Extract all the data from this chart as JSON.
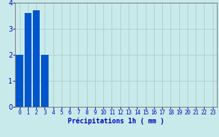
{
  "categories": [
    0,
    1,
    2,
    3,
    4,
    5,
    6,
    7,
    8,
    9,
    10,
    11,
    12,
    13,
    14,
    15,
    16,
    17,
    18,
    19,
    20,
    21,
    22,
    23
  ],
  "values": [
    2.0,
    3.6,
    3.7,
    2.0,
    0,
    0,
    0,
    0,
    0,
    0,
    0,
    0,
    0,
    0,
    0,
    0,
    0,
    0,
    0,
    0,
    0,
    0,
    0,
    0
  ],
  "bar_color": "#0055cc",
  "background_color": "#c8eaea",
  "grid_color": "#b0d0d0",
  "xlabel": "Précipitations 1h ( mm )",
  "xlabel_color": "#0000bb",
  "xlabel_fontsize": 7,
  "tick_color": "#0000bb",
  "tick_fontsize": 5.5,
  "ytick_fontsize": 7,
  "ylim": [
    0,
    4
  ],
  "yticks": [
    0,
    1,
    2,
    3,
    4
  ],
  "bar_width": 0.85
}
